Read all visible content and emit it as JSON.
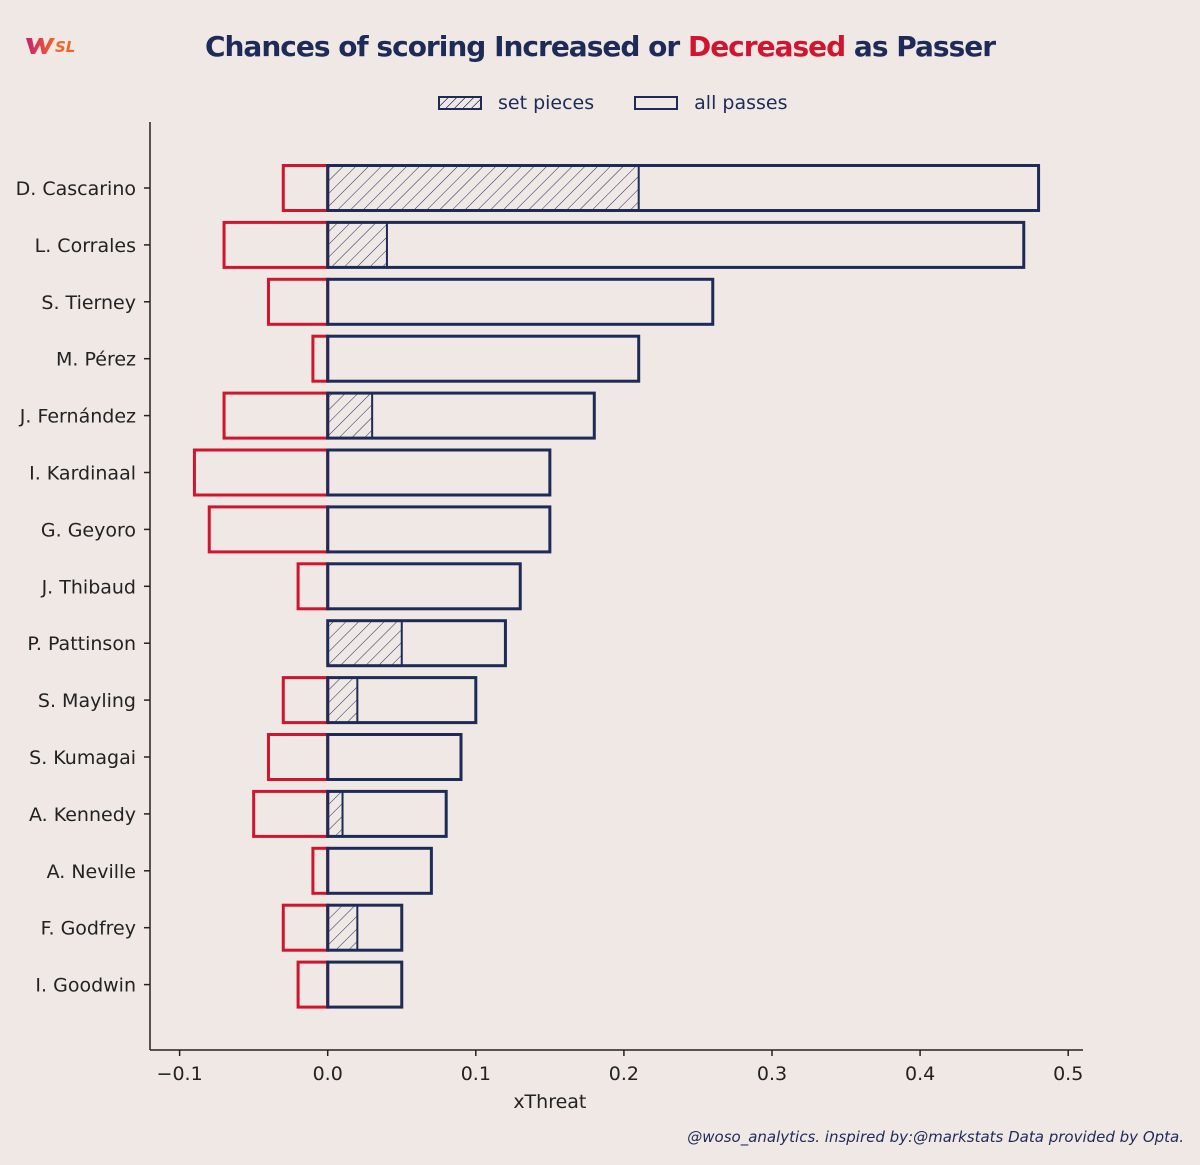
{
  "header": {
    "logo_text": "WSL",
    "title_part1": "Chances of scoring Increased or ",
    "title_highlight": "Decreased",
    "title_part2": " as Passer"
  },
  "legend": {
    "items": [
      {
        "label": "set pieces",
        "style": "hatched"
      },
      {
        "label": "all passes",
        "style": "outline"
      }
    ]
  },
  "footer": {
    "credit": "@woso_analytics. inspired by:@markstats Data provided by Opta."
  },
  "colors": {
    "background": "#efe8e5",
    "positive": "#1e2b57",
    "negative": "#d0152f"
  },
  "chart_data": {
    "type": "bar",
    "orientation": "horizontal",
    "xlabel": "xThreat",
    "xlim": [
      -0.12,
      0.51
    ],
    "xticks": [
      -0.1,
      0.0,
      0.1,
      0.2,
      0.3,
      0.4,
      0.5
    ],
    "xtick_labels": [
      "−0.1",
      "0.0",
      "0.1",
      "0.2",
      "0.3",
      "0.4",
      "0.5"
    ],
    "grid": false,
    "legend_position": "top-center",
    "categories": [
      "D. Cascarino",
      "L. Corrales",
      "S. Tierney",
      "M. Pérez",
      "J. Fernández",
      "I. Kardinaal",
      "G. Geyoro",
      "J. Thibaud",
      "P. Pattinson",
      "S. Mayling",
      "S. Kumagai",
      "A. Kennedy",
      "A. Neville",
      "F. Godfrey",
      "I. Goodwin"
    ],
    "series": [
      {
        "name": "all passes",
        "values": [
          0.48,
          0.47,
          0.26,
          0.21,
          0.18,
          0.15,
          0.15,
          0.13,
          0.12,
          0.1,
          0.09,
          0.08,
          0.07,
          0.05,
          0.05
        ]
      },
      {
        "name": "set pieces",
        "values": [
          0.21,
          0.04,
          0.0,
          0.0,
          0.03,
          0.0,
          0.0,
          0.0,
          0.05,
          0.02,
          0.0,
          0.01,
          0.0,
          0.02,
          0.0
        ]
      },
      {
        "values": [
          -0.03,
          -0.07,
          -0.04,
          -0.01,
          -0.07,
          -0.09,
          -0.08,
          -0.02,
          0.0,
          -0.03,
          -0.04,
          -0.05,
          -0.01,
          -0.03,
          -0.02
        ]
      }
    ]
  }
}
